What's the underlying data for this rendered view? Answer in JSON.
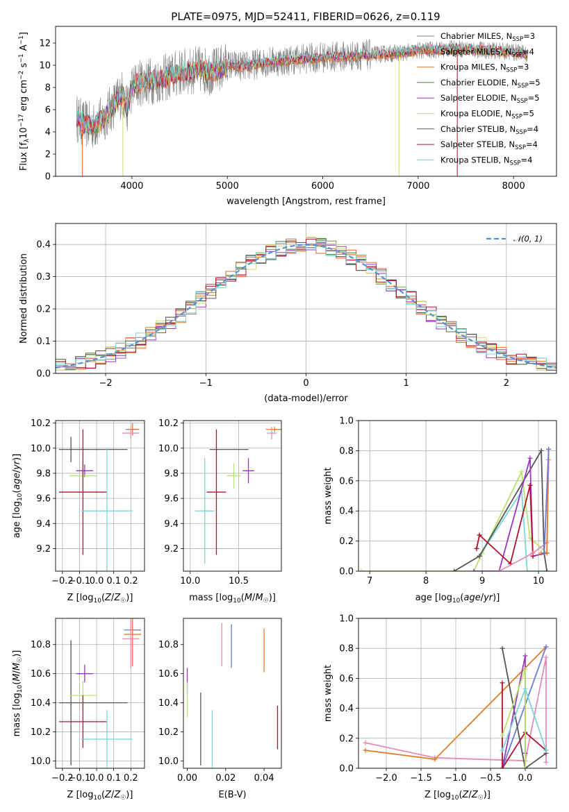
{
  "figure": {
    "title": "PLATE=0975, MJD=52411, FIBERID=0626, z=0.119"
  },
  "colors": {
    "Chabrier MILES": "#808080",
    "Salpeter MILES": "#ef5d2c",
    "Kroupa MILES": "#e07b28",
    "Chabrier ELODIE": "#4a7a4a",
    "Salpeter ELODIE": "#9a35c4",
    "Kroupa ELODIE": "#d6d96a",
    "Chabrier STELIB": "#555555",
    "Salpeter STELIB": "#b0102a",
    "Kroupa STELIB": "#7ad6d8",
    "pink": "#e78ab5",
    "blue": "#6a7ad8",
    "limegreen": "#b3e46b",
    "normal_curve": "#5b8fd0"
  },
  "chart_data": [
    {
      "type": "line",
      "name": "spectrum",
      "title": "PLATE=0975, MJD=52411, FIBERID=0626, z=0.119",
      "xlabel": "wavelength [Angstrom, rest frame]",
      "ylabel": "Flux [f_λ10^-17 erg cm^-2 s^-1 A^-1]",
      "xlim": [
        3200,
        8450
      ],
      "ylim": [
        0,
        13.5
      ],
      "xticks": [
        4000,
        5000,
        6000,
        7000,
        8000
      ],
      "yticks": [
        0,
        2,
        4,
        6,
        8,
        10,
        12
      ],
      "grid": false,
      "legend_position": "top-right",
      "legend": [
        {
          "label": "Chabrier MILES, N",
          "sub": "SSP",
          "suffix": "=3",
          "color": "#808080"
        },
        {
          "label": "Salpeter MILES, N",
          "sub": "SSP",
          "suffix": "=4",
          "color": "#ef5d2c"
        },
        {
          "label": "Kroupa MILES, N",
          "sub": "SSP",
          "suffix": "=3",
          "color": "#e07b28"
        },
        {
          "label": "Chabrier ELODIE, N",
          "sub": "SSP",
          "suffix": "=5",
          "color": "#4a7a4a"
        },
        {
          "label": "Salpeter ELODIE, N",
          "sub": "SSP",
          "suffix": "=5",
          "color": "#9a35c4"
        },
        {
          "label": "Kroupa ELODIE, N",
          "sub": "SSP",
          "suffix": "=5",
          "color": "#d6d96a"
        },
        {
          "label": "Chabrier STELIB, N",
          "sub": "SSP",
          "suffix": "=4",
          "color": "#555555"
        },
        {
          "label": "Salpeter STELIB, N",
          "sub": "SSP",
          "suffix": "=4",
          "color": "#b0102a"
        },
        {
          "label": "Kroupa STELIB, N",
          "sub": "SSP",
          "suffix": "=4",
          "color": "#7ad6d8"
        }
      ],
      "continuum_points": [
        [
          3420,
          5.3
        ],
        [
          3450,
          5.0
        ],
        [
          3500,
          4.7
        ],
        [
          3600,
          4.5
        ],
        [
          3700,
          5.2
        ],
        [
          3800,
          6.3
        ],
        [
          3900,
          7.5
        ],
        [
          3950,
          6.0
        ],
        [
          4000,
          8.0
        ],
        [
          4100,
          8.5
        ],
        [
          4300,
          8.7
        ],
        [
          4500,
          9.3
        ],
        [
          4700,
          9.6
        ],
        [
          4861,
          9.4
        ],
        [
          5000,
          10.0
        ],
        [
          5200,
          9.9
        ],
        [
          5400,
          10.3
        ],
        [
          5600,
          10.4
        ],
        [
          5800,
          10.6
        ],
        [
          6000,
          10.7
        ],
        [
          6200,
          10.8
        ],
        [
          6400,
          10.9
        ],
        [
          6600,
          11.0
        ],
        [
          6800,
          11.1
        ],
        [
          7000,
          11.3
        ],
        [
          7200,
          11.4
        ],
        [
          7400,
          11.5
        ],
        [
          7600,
          11.4
        ],
        [
          7800,
          11.3
        ],
        [
          8000,
          11.2
        ],
        [
          8150,
          11.0
        ]
      ]
    },
    {
      "type": "line",
      "name": "residuals",
      "xlabel": "(data-model)/error",
      "ylabel": "Normed distribution",
      "xlim": [
        -2.5,
        2.5
      ],
      "ylim": [
        0,
        0.465
      ],
      "xticks": [
        -2,
        -1,
        0,
        1,
        2
      ],
      "yticks": [
        0.0,
        0.1,
        0.2,
        0.3,
        0.4
      ],
      "grid": true,
      "legend_position": "top-right",
      "legend": [
        {
          "label": "𝒩(0, 1)",
          "color": "#5b8fd0"
        }
      ],
      "bin_width": 0.1,
      "hist_colors": [
        "#808080",
        "#ef5d2c",
        "#e07b28",
        "#4a7a4a",
        "#9a35c4",
        "#d6d96a",
        "#555555",
        "#b0102a",
        "#7ad6d8"
      ]
    },
    {
      "type": "scatter",
      "name": "age-vs-Z",
      "xlabel": "Z [log10(Z/Z☉)]",
      "ylabel": "age [log10(age/yr)]",
      "xlim": [
        -0.24,
        0.28
      ],
      "ylim": [
        9.02,
        10.22
      ],
      "xticks": [
        -0.2,
        -0.1,
        0.0,
        0.1,
        0.2
      ],
      "yticks": [
        9.2,
        9.4,
        9.6,
        9.8,
        10.0,
        10.2
      ],
      "grid": true,
      "points": [
        {
          "x": 0.21,
          "y": 10.15,
          "ex": 0.04,
          "ey": 0.0,
          "color": "#6a7ad8"
        },
        {
          "x": 0.21,
          "y": 10.15,
          "ex": 0.03,
          "ey": 0.05,
          "color": "#e07b28"
        },
        {
          "x": 0.2,
          "y": 10.12,
          "ex": 0.05,
          "ey": 0.04,
          "color": "#e78ab5"
        },
        {
          "x": -0.02,
          "y": 9.99,
          "ex": 0.2,
          "ey": 0.0,
          "color": "#555555"
        },
        {
          "x": -0.15,
          "y": 9.99,
          "ex": 0.0,
          "ey": 0.1,
          "color": "#555555"
        },
        {
          "x": -0.07,
          "y": 9.82,
          "ex": 0.05,
          "ey": 0.05,
          "color": "#9a35c4"
        },
        {
          "x": -0.08,
          "y": 9.78,
          "ex": 0.08,
          "ey": 0.11,
          "color": "#b3e46b"
        },
        {
          "x": -0.08,
          "y": 9.65,
          "ex": 0.14,
          "ey": 0.5,
          "color": "#b0102a"
        },
        {
          "x": 0.06,
          "y": 9.5,
          "ex": 0.15,
          "ey": 0.5,
          "color": "#7ad6d8"
        }
      ]
    },
    {
      "type": "scatter",
      "name": "age-vs-mass",
      "xlabel": "mass [log10(M/M☉)]",
      "ylabel": "",
      "xlim": [
        9.93,
        10.94
      ],
      "ylim": [
        9.02,
        10.22
      ],
      "xticks": [
        10.0,
        10.5
      ],
      "yticks": [
        9.2,
        9.4,
        9.6,
        9.8,
        10.0,
        10.2
      ],
      "grid": true,
      "points": [
        {
          "x": 10.9,
          "y": 10.15,
          "ex": 0.05,
          "ey": 0.0,
          "color": "#6a7ad8"
        },
        {
          "x": 10.87,
          "y": 10.15,
          "ex": 0.09,
          "ey": 0.02,
          "color": "#e07b28"
        },
        {
          "x": 10.84,
          "y": 10.12,
          "ex": 0.05,
          "ey": 0.05,
          "color": "#e78ab5"
        },
        {
          "x": 10.4,
          "y": 9.99,
          "ex": 0.2,
          "ey": 0.0,
          "color": "#555555"
        },
        {
          "x": 10.6,
          "y": 9.82,
          "ex": 0.06,
          "ey": 0.1,
          "color": "#9a35c4"
        },
        {
          "x": 10.45,
          "y": 9.78,
          "ex": 0.07,
          "ey": 0.1,
          "color": "#b3e46b"
        },
        {
          "x": 10.27,
          "y": 9.65,
          "ex": 0.1,
          "ey": 0.5,
          "color": "#b0102a"
        },
        {
          "x": 10.15,
          "y": 9.5,
          "ex": 0.1,
          "ey": 0.42,
          "color": "#7ad6d8"
        }
      ]
    },
    {
      "type": "line",
      "name": "mass-weight-vs-age",
      "xlabel": "age [log10(age/yr)]",
      "ylabel": "mass weight",
      "xlim": [
        6.8,
        10.32
      ],
      "ylim": [
        0,
        1.0
      ],
      "xticks": [
        7,
        8,
        9,
        10
      ],
      "yticks": [
        0.0,
        0.2,
        0.4,
        0.6,
        0.8,
        1.0
      ],
      "grid": true,
      "series": [
        {
          "color": "#b3e46b",
          "points": [
            [
              6.85,
              0.0
            ],
            [
              8.85,
              0.0
            ],
            [
              9.0,
              0.12
            ],
            [
              9.7,
              0.66
            ],
            [
              9.85,
              0.22
            ],
            [
              10.15,
              0.12
            ]
          ]
        },
        {
          "color": "#7ad6d8",
          "points": [
            [
              8.95,
              0.1
            ],
            [
              9.7,
              0.53
            ],
            [
              9.8,
              0.0
            ],
            [
              10.15,
              0.0
            ]
          ]
        },
        {
          "color": "#555555",
          "points": [
            [
              8.5,
              0.0
            ],
            [
              8.95,
              0.1
            ],
            [
              10.05,
              0.8
            ],
            [
              10.1,
              0.12
            ],
            [
              10.15,
              0.0
            ]
          ]
        },
        {
          "color": "#9a35c4",
          "points": [
            [
              8.85,
              0.0
            ],
            [
              9.3,
              0.0
            ],
            [
              9.85,
              0.75
            ],
            [
              9.9,
              0.1
            ],
            [
              10.15,
              0.12
            ]
          ]
        },
        {
          "color": "#b0102a",
          "points": [
            [
              8.9,
              0.15
            ],
            [
              8.95,
              0.24
            ],
            [
              9.5,
              0.05
            ],
            [
              9.85,
              0.57
            ],
            [
              9.9,
              0.1
            ]
          ]
        },
        {
          "color": "#e78ab5",
          "points": [
            [
              9.3,
              0.0
            ],
            [
              9.9,
              0.12
            ],
            [
              10.15,
              0.19
            ],
            [
              10.18,
              0.74
            ]
          ]
        },
        {
          "color": "#e07b28",
          "points": [
            [
              10.05,
              0.12
            ],
            [
              10.15,
              0.12
            ],
            [
              10.18,
              0.81
            ]
          ]
        },
        {
          "color": "#6a7ad8",
          "points": [
            [
              10.1,
              0.12
            ],
            [
              10.18,
              0.81
            ]
          ]
        }
      ]
    },
    {
      "type": "scatter",
      "name": "mass-vs-Z",
      "xlabel": "Z [log10(Z/Z☉)]",
      "ylabel": "mass [log10(M/M☉)]",
      "xlim": [
        -0.24,
        0.28
      ],
      "ylim": [
        9.95,
        10.98
      ],
      "xticks": [
        -0.2,
        -0.1,
        0.0,
        0.1,
        0.2
      ],
      "yticks": [
        10.0,
        10.2,
        10.4,
        10.6,
        10.8
      ],
      "grid": true,
      "points": [
        {
          "x": 0.21,
          "y": 10.9,
          "ex": 0.05,
          "ey": 0.0,
          "color": "#6a7ad8"
        },
        {
          "x": 0.21,
          "y": 10.87,
          "ex": 0.05,
          "ey": 0.22,
          "color": "#e07b28"
        },
        {
          "x": 0.2,
          "y": 10.84,
          "ex": 0.05,
          "ey": 0.2,
          "color": "#e78ab5"
        },
        {
          "x": -0.02,
          "y": 10.4,
          "ex": 0.2,
          "ey": 0.0,
          "color": "#555555"
        },
        {
          "x": -0.15,
          "y": 10.4,
          "ex": 0.0,
          "ey": 0.43,
          "color": "#555555"
        },
        {
          "x": -0.07,
          "y": 10.6,
          "ex": 0.05,
          "ey": 0.06,
          "color": "#9a35c4"
        },
        {
          "x": -0.08,
          "y": 10.45,
          "ex": 0.08,
          "ey": 0.1,
          "color": "#b3e46b"
        },
        {
          "x": -0.08,
          "y": 10.27,
          "ex": 0.14,
          "ey": 0.18,
          "color": "#b0102a"
        },
        {
          "x": 0.06,
          "y": 10.15,
          "ex": 0.15,
          "ey": 0.2,
          "color": "#7ad6d8"
        }
      ]
    },
    {
      "type": "scatter",
      "name": "mass-vs-ebv",
      "xlabel": "E(B-V)",
      "ylabel": "",
      "xlim": [
        -0.002,
        0.049
      ],
      "ylim": [
        9.95,
        10.98
      ],
      "xticks": [
        0.0,
        0.02,
        0.04
      ],
      "yticks": [
        10.0,
        10.2,
        10.4,
        10.6,
        10.8
      ],
      "grid": false,
      "points": [
        {
          "x": 0.0,
          "y": 10.55,
          "ex": 0,
          "ey": 0.09,
          "color": "#9a35c4"
        },
        {
          "x": 0.0,
          "y": 10.42,
          "ex": 0,
          "ey": 0.12,
          "color": "#b3e46b"
        },
        {
          "x": 0.007,
          "y": 10.22,
          "ex": 0,
          "ey": 0.25,
          "color": "#555555"
        },
        {
          "x": 0.013,
          "y": 10.15,
          "ex": 0,
          "ey": 0.2,
          "color": "#7ad6d8"
        },
        {
          "x": 0.018,
          "y": 10.8,
          "ex": 0,
          "ey": 0.15,
          "color": "#e78ab5"
        },
        {
          "x": 0.023,
          "y": 10.79,
          "ex": 0,
          "ey": 0.15,
          "color": "#6a7ad8"
        },
        {
          "x": 0.04,
          "y": 10.76,
          "ex": 0,
          "ey": 0.15,
          "color": "#e07b28"
        },
        {
          "x": 0.047,
          "y": 10.23,
          "ex": 0,
          "ey": 0.15,
          "color": "#b0102a"
        }
      ]
    },
    {
      "type": "line",
      "name": "mass-weight-vs-Z",
      "xlabel": "Z [log10(Z/Z☉)]",
      "ylabel": "mass weight",
      "xlim": [
        -2.4,
        0.45
      ],
      "ylim": [
        0,
        1.0
      ],
      "xticks": [
        -2.0,
        -1.5,
        -1.0,
        -0.5,
        0.0
      ],
      "yticks": [
        0.0,
        0.2,
        0.4,
        0.6,
        0.8,
        1.0
      ],
      "grid": true,
      "series": [
        {
          "color": "#e78ab5",
          "points": [
            [
              -2.3,
              0.17
            ],
            [
              -1.3,
              0.07
            ],
            [
              0.0,
              0.05
            ],
            [
              0.3,
              0.74
            ],
            [
              0.3,
              0.04
            ]
          ]
        },
        {
          "color": "#e07b28",
          "points": [
            [
              -2.3,
              0.12
            ],
            [
              -1.3,
              0.06
            ],
            [
              0.3,
              0.81
            ]
          ]
        },
        {
          "color": "#6a7ad8",
          "points": [
            [
              -0.33,
              0.0
            ],
            [
              0.3,
              0.81
            ]
          ]
        },
        {
          "color": "#555555",
          "points": [
            [
              -0.33,
              0.8
            ],
            [
              0.0,
              0.0
            ],
            [
              0.3,
              0.1
            ]
          ]
        },
        {
          "color": "#9a35c4",
          "points": [
            [
              -0.33,
              0.0
            ],
            [
              0.0,
              0.75
            ],
            [
              0.0,
              0.1
            ]
          ]
        },
        {
          "color": "#b0102a",
          "points": [
            [
              -0.33,
              0.57
            ],
            [
              -0.33,
              0.0
            ],
            [
              0.0,
              0.24
            ],
            [
              0.3,
              0.12
            ]
          ]
        },
        {
          "color": "#b3e46b",
          "points": [
            [
              -0.33,
              0.22
            ],
            [
              0.0,
              0.66
            ],
            [
              0.0,
              0.0
            ]
          ]
        },
        {
          "color": "#7ad6d8",
          "points": [
            [
              -0.33,
              0.12
            ],
            [
              0.0,
              0.53
            ],
            [
              0.3,
              0.12
            ]
          ]
        }
      ]
    }
  ]
}
